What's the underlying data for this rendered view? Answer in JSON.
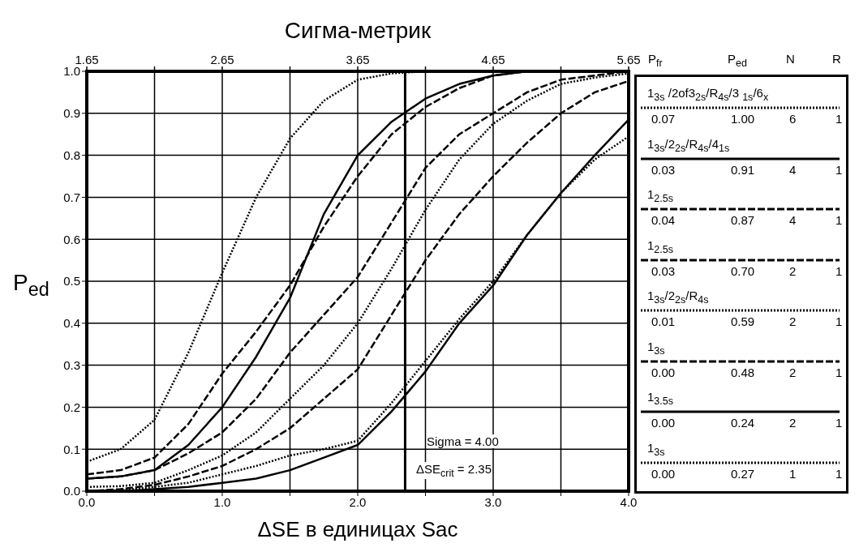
{
  "chart_data": {
    "type": "line",
    "x2label": "Сигма-метрик",
    "xlabel": "ΔSE в единицах Sac",
    "ylabel": "P$_{ed}$",
    "x": [
      0,
      0.25,
      0.5,
      0.75,
      1,
      1.25,
      1.5,
      1.75,
      2,
      2.25,
      2.5,
      2.75,
      3,
      3.25,
      3.5,
      3.75,
      4
    ],
    "series": [
      {
        "name": "1$_{3s}$ /2of3$_{2s}$/R$_{4s}$/3 $_{1s}$/6$_{x}$",
        "color": "#000000",
        "line_style": "dotted",
        "values": [
          0.07,
          0.1,
          0.17,
          0.33,
          0.52,
          0.7,
          0.84,
          0.93,
          0.98,
          0.995,
          1.0,
          null,
          null,
          null,
          null,
          null,
          null
        ]
      },
      {
        "name": "1$_{3s}$/2$_{2s}$/R$_{4s}$/4$_{1s}$",
        "color": "#000000",
        "line_style": "solid",
        "values": [
          0.03,
          0.035,
          0.05,
          0.11,
          0.2,
          0.32,
          0.46,
          0.66,
          0.8,
          0.88,
          0.935,
          0.97,
          0.99,
          1.0,
          1.0,
          1.0,
          1.0
        ]
      },
      {
        "name": "1$_{2.5s}$",
        "color": "#000000",
        "line_style": "dashed",
        "values": [
          0.04,
          0.05,
          0.08,
          0.16,
          0.28,
          0.38,
          0.49,
          0.63,
          0.75,
          0.85,
          0.915,
          0.96,
          0.99,
          1.0,
          1.0,
          1.0,
          1.0
        ]
      },
      {
        "name": "1$_{2.5s}$",
        "color": "#000000",
        "line_style": "dashed",
        "values": [
          0.03,
          0.035,
          0.05,
          0.09,
          0.14,
          0.22,
          0.33,
          0.42,
          0.51,
          0.64,
          0.77,
          0.85,
          0.9,
          0.95,
          0.98,
          0.99,
          1.0
        ]
      },
      {
        "name": "1$_{3s}$/2$_{2s}$/R$_{4s}$",
        "color": "#000000",
        "line_style": "dotted",
        "values": [
          0.01,
          0.012,
          0.02,
          0.05,
          0.085,
          0.14,
          0.22,
          0.3,
          0.4,
          0.53,
          0.67,
          0.79,
          0.875,
          0.93,
          0.97,
          0.985,
          0.995
        ]
      },
      {
        "name": "1$_{3s}$",
        "color": "#000000",
        "line_style": "dashed",
        "values": [
          0,
          0.005,
          0.015,
          0.035,
          0.06,
          0.1,
          0.15,
          0.22,
          0.29,
          0.42,
          0.55,
          0.66,
          0.75,
          0.83,
          0.9,
          0.95,
          0.977
        ]
      },
      {
        "name": "1$_{3.5s}$",
        "color": "#000000",
        "line_style": "solid",
        "values": [
          0,
          0,
          0.005,
          0.01,
          0.02,
          0.03,
          0.05,
          0.08,
          0.11,
          0.19,
          0.285,
          0.4,
          0.49,
          0.61,
          0.71,
          0.8,
          0.885
        ]
      },
      {
        "name": "1$_{3s}$",
        "color": "#000000",
        "line_style": "dotted",
        "values": [
          0,
          0.002,
          0.01,
          0.02,
          0.04,
          0.06,
          0.085,
          0.1,
          0.12,
          0.21,
          0.31,
          0.41,
          0.5,
          0.61,
          0.71,
          0.79,
          0.845
        ]
      }
    ],
    "xlim": [
      0,
      4
    ],
    "xticks": [
      {
        "value": 0,
        "label": "0.0"
      },
      {
        "value": 0.5,
        "label": null
      },
      {
        "value": 1,
        "label": "1.0"
      },
      {
        "value": 1.5,
        "label": null
      },
      {
        "value": 2,
        "label": "2.0"
      },
      {
        "value": 2.5,
        "label": null
      },
      {
        "value": 3,
        "label": "3.0"
      },
      {
        "value": 3.5,
        "label": null
      },
      {
        "value": 4,
        "label": "4.0"
      }
    ],
    "x2lim": [
      1.65,
      5.65
    ],
    "x2ticks": [
      1.65,
      {
        "value": 2.15,
        "label": null
      },
      2.65,
      {
        "value": 3.15,
        "label": null
      },
      3.65,
      {
        "value": 4.15,
        "label": null
      },
      4.65,
      {
        "value": 5.15,
        "label": null
      },
      5.65
    ],
    "ylim": [
      0,
      1
    ],
    "yticks": [
      {
        "value": 0,
        "label": "0.0"
      },
      {
        "value": 0.1,
        "label": "0.1"
      },
      {
        "value": 0.2,
        "label": "0.2"
      },
      {
        "value": 0.3,
        "label": "0.3"
      },
      {
        "value": 0.4,
        "label": "0.4"
      },
      {
        "value": 0.5,
        "label": "0.5"
      },
      {
        "value": 0.6,
        "label": "0.6"
      },
      {
        "value": 0.7,
        "label": "0.7"
      },
      {
        "value": 0.8,
        "label": "0.8"
      },
      {
        "value": 0.9,
        "label": "0.9"
      },
      {
        "value": 1,
        "label": "1.0"
      }
    ],
    "ref_lines": [
      {
        "axis": "x",
        "value": 2.35,
        "color": "#000000"
      }
    ],
    "grid": true,
    "legend": "right",
    "annotations": [
      "Sigma  =  4.00",
      "ΔSE$_{crit}$  =  2.35",
      "P$_{fr}$",
      "P$_{ed}$",
      "N",
      "R",
      "0.07",
      "1.00",
      "6",
      "1",
      "0.03",
      "0.91",
      "4",
      "1",
      "0.04",
      "0.87",
      "4",
      "1",
      "0.03",
      "0.70",
      "2",
      "1",
      "0.01",
      "0.59",
      "2",
      "1",
      "0.00",
      "0.48",
      "2",
      "1",
      "0.00",
      "0.24",
      "2",
      "1",
      "0.00",
      "0.27",
      "1",
      "1"
    ]
  }
}
